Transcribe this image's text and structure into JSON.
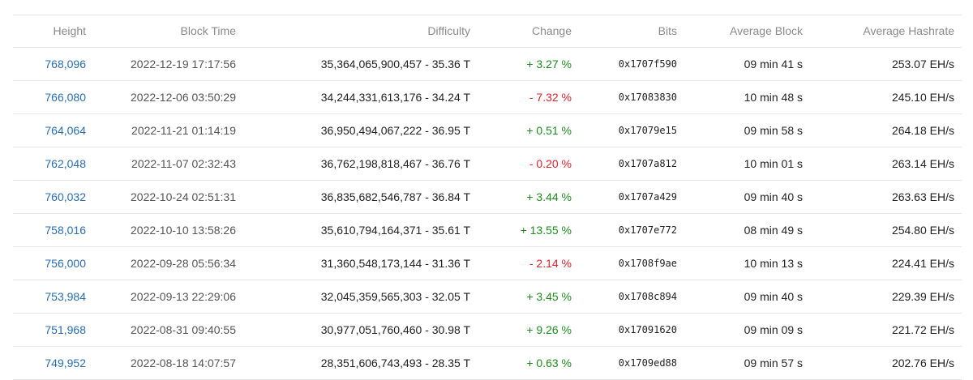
{
  "table": {
    "headers": [
      "Height",
      "Block Time",
      "Difficulty",
      "Change",
      "Bits",
      "Average Block",
      "Average Hashrate"
    ],
    "rows": [
      [
        "768,096",
        "2022-12-19 17:17:56",
        "35,364,065,900,457 - 35.36 T",
        "+ 3.27 %",
        "0x1707f590",
        "09 min 41 s",
        "253.07 EH/s"
      ],
      [
        "766,080",
        "2022-12-06 03:50:29",
        "34,244,331,613,176 - 34.24 T",
        "- 7.32 %",
        "0x17083830",
        "10 min 48 s",
        "245.10 EH/s"
      ],
      [
        "764,064",
        "2022-11-21 01:14:19",
        "36,950,494,067,222 - 36.95 T",
        "+ 0.51 %",
        "0x17079e15",
        "09 min 58 s",
        "264.18 EH/s"
      ],
      [
        "762,048",
        "2022-11-07 02:32:43",
        "36,762,198,818,467 - 36.76 T",
        "- 0.20 %",
        "0x1707a812",
        "10 min 01 s",
        "263.14 EH/s"
      ],
      [
        "760,032",
        "2022-10-24 02:51:31",
        "36,835,682,546,787 - 36.84 T",
        "+ 3.44 %",
        "0x1707a429",
        "09 min 40 s",
        "263.63 EH/s"
      ],
      [
        "758,016",
        "2022-10-10 13:58:26",
        "35,610,794,164,371 - 35.61 T",
        "+ 13.55 %",
        "0x1707e772",
        "08 min 49 s",
        "254.80 EH/s"
      ],
      [
        "756,000",
        "2022-09-28 05:56:34",
        "31,360,548,173,144 - 31.36 T",
        "- 2.14 %",
        "0x1708f9ae",
        "10 min 13 s",
        "224.41 EH/s"
      ],
      [
        "753,984",
        "2022-09-13 22:29:06",
        "32,045,359,565,303 - 32.05 T",
        "+ 3.45 %",
        "0x1708c894",
        "09 min 40 s",
        "229.39 EH/s"
      ],
      [
        "751,968",
        "2022-08-31 09:40:55",
        "30,977,051,760,460 - 30.98 T",
        "+ 9.26 %",
        "0x17091620",
        "09 min 09 s",
        "221.72 EH/s"
      ],
      [
        "749,952",
        "2022-08-18 14:07:57",
        "28,351,606,743,493 - 28.35 T",
        "+ 0.63 %",
        "0x1709ed88",
        "09 min 57 s",
        "202.76 EH/s"
      ]
    ]
  }
}
